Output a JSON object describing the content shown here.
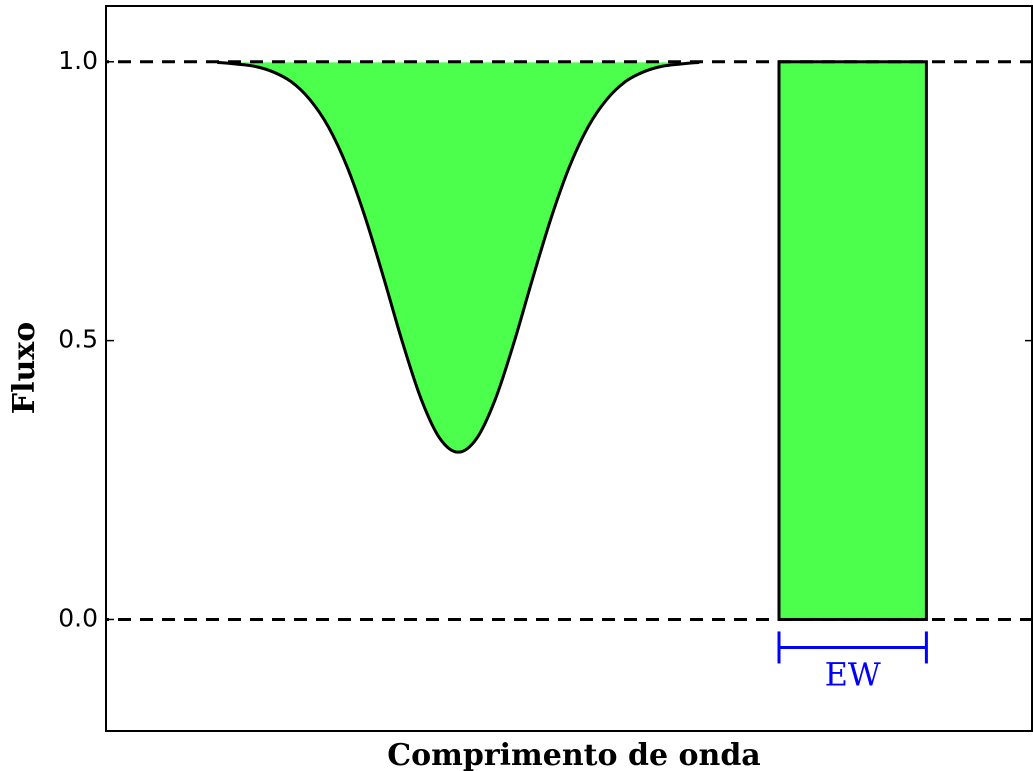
{
  "chart_data": {
    "type": "line",
    "xlabel": "Comprimento de onda",
    "ylabel": "Fluxo",
    "x": [
      12,
      14,
      16,
      18,
      20,
      22,
      24,
      26,
      28,
      30,
      32,
      34,
      36,
      38,
      40,
      42,
      44,
      46,
      48,
      50,
      52,
      54,
      56,
      58,
      60,
      62,
      64
    ],
    "values": [
      0.999,
      0.996,
      0.992,
      0.982,
      0.964,
      0.932,
      0.883,
      0.812,
      0.719,
      0.61,
      0.496,
      0.395,
      0.325,
      0.3,
      0.325,
      0.395,
      0.496,
      0.61,
      0.719,
      0.812,
      0.883,
      0.932,
      0.964,
      0.982,
      0.992,
      0.996,
      0.999
    ],
    "color": "#4cff4c",
    "line_color": "#000000",
    "rectangle": {
      "x": [
        72.6,
        88.5
      ],
      "values": [
        0,
        1
      ]
    },
    "reference_lines": [
      0,
      1
    ],
    "annotation": {
      "text": "EW",
      "color": "#0000ff"
    },
    "xlim": [
      0,
      100
    ],
    "ylim": [
      -0.2,
      1.1
    ],
    "yticks": [
      {
        "value": 0,
        "label": "0.0"
      },
      0.5,
      {
        "value": 1,
        "label": "1.0"
      }
    ]
  }
}
